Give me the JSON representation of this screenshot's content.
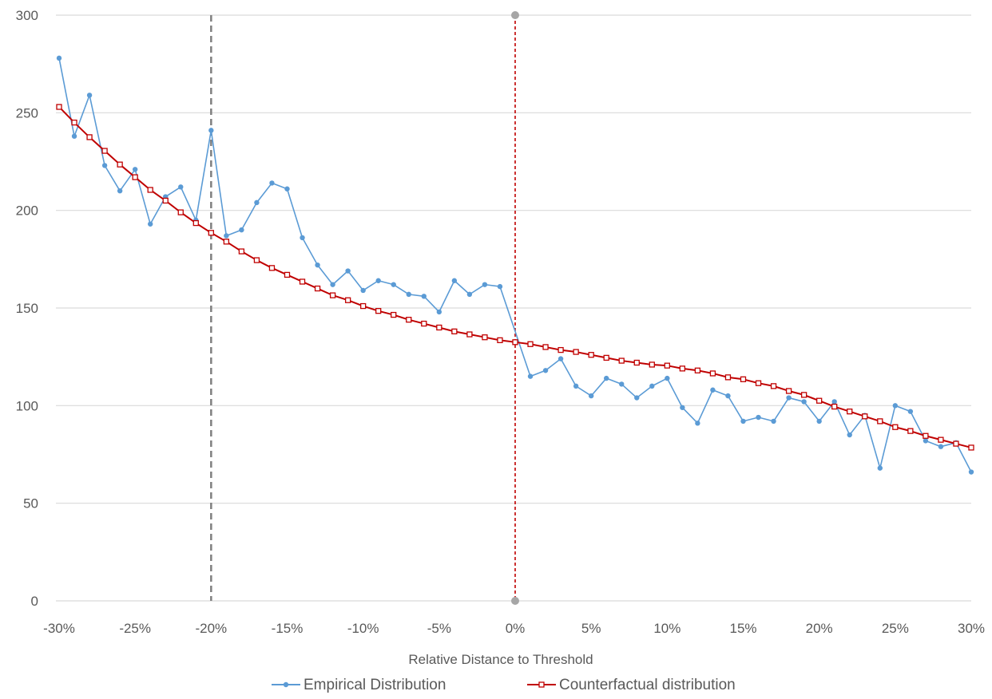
{
  "chart_data": {
    "type": "line",
    "title": "",
    "xlabel": "Relative Distance to Threshold",
    "ylabel": "",
    "xlim": [
      -30,
      30
    ],
    "ylim": [
      0,
      300
    ],
    "x_ticks": [
      -30,
      -25,
      -20,
      -15,
      -10,
      -5,
      0,
      5,
      10,
      15,
      20,
      25,
      30
    ],
    "x_tick_labels": [
      "-30%",
      "-25%",
      "-20%",
      "-15%",
      "-10%",
      "-5%",
      "0%",
      "5%",
      "10%",
      "15%",
      "20%",
      "25%",
      "30%"
    ],
    "y_ticks": [
      0,
      50,
      100,
      150,
      200,
      250,
      300
    ],
    "y_tick_labels": [
      "0",
      "50",
      "100",
      "150",
      "200",
      "250",
      "300"
    ],
    "grid": true,
    "legend_position": "bottom",
    "x": [
      -30,
      -29,
      -28,
      -27,
      -26,
      -25,
      -24,
      -23,
      -22,
      -21,
      -20,
      -19,
      -18,
      -17,
      -16,
      -15,
      -14,
      -13,
      -12,
      -11,
      -10,
      -9,
      -8,
      -7,
      -6,
      -5,
      -4,
      -3,
      -2,
      -1,
      0,
      1,
      2,
      3,
      4,
      5,
      6,
      7,
      8,
      9,
      10,
      11,
      12,
      13,
      14,
      15,
      16,
      17,
      18,
      19,
      20,
      21,
      22,
      23,
      24,
      25,
      26,
      27,
      28,
      29,
      30
    ],
    "series": [
      {
        "name": "Empirical Distribution",
        "color": "#5B9BD5",
        "marker": "circle",
        "x": [
          -30,
          -29,
          -28,
          -27,
          -26,
          -25,
          -24,
          -23,
          -22,
          -21,
          -20,
          -19,
          -18,
          -17,
          -16,
          -15,
          -14,
          -13,
          -12,
          -11,
          -10,
          -9,
          -8,
          -7,
          -6,
          -5,
          -4,
          -3,
          -2,
          -1,
          1,
          2,
          3,
          4,
          5,
          6,
          7,
          8,
          9,
          10,
          11,
          12,
          13,
          14,
          15,
          16,
          17,
          18,
          19,
          20,
          21,
          22,
          23,
          24,
          25,
          26,
          27,
          28,
          29,
          30
        ],
        "values": [
          278,
          238,
          259,
          223,
          210,
          221,
          193,
          207,
          212,
          195,
          241,
          187,
          190,
          204,
          214,
          211,
          186,
          172,
          162,
          169,
          159,
          164,
          162,
          157,
          156,
          148,
          164,
          157,
          162,
          161,
          115,
          118,
          124,
          110,
          105,
          114,
          111,
          104,
          110,
          114,
          99,
          91,
          108,
          105,
          92,
          94,
          92,
          104,
          102,
          92,
          102,
          85,
          95,
          68,
          100,
          97,
          82,
          79,
          81,
          66
        ]
      },
      {
        "name": "Counterfactual distribution",
        "color": "#C00000",
        "marker": "square",
        "x": [
          -30,
          -29,
          -28,
          -27,
          -26,
          -25,
          -24,
          -23,
          -22,
          -21,
          -20,
          -19,
          -18,
          -17,
          -16,
          -15,
          -14,
          -13,
          -12,
          -11,
          -10,
          -9,
          -8,
          -7,
          -6,
          -5,
          -4,
          -3,
          -2,
          -1,
          0,
          1,
          2,
          3,
          4,
          5,
          6,
          7,
          8,
          9,
          10,
          11,
          12,
          13,
          14,
          15,
          16,
          17,
          18,
          19,
          20,
          21,
          22,
          23,
          24,
          25,
          26,
          27,
          28,
          29,
          30
        ],
        "values": [
          253,
          245,
          237.5,
          230.5,
          223.5,
          217,
          210.5,
          205,
          199,
          193.5,
          188.5,
          184,
          179,
          174.5,
          170.5,
          167,
          163.5,
          160,
          156.5,
          154,
          151,
          148.5,
          146.5,
          144,
          142,
          140,
          138,
          136.5,
          135,
          133.5,
          132.5,
          131.5,
          130,
          128.5,
          127.5,
          126,
          124.5,
          123,
          122,
          121,
          120.5,
          119,
          118,
          116.5,
          114.5,
          113.5,
          111.5,
          110,
          107.5,
          105.5,
          102.5,
          99.5,
          97,
          94.5,
          92,
          89,
          87,
          84.5,
          82.5,
          80.5,
          78.5
        ]
      }
    ],
    "reference_lines": [
      {
        "x": -20,
        "color": "#808080",
        "style": "dashed"
      },
      {
        "x": 0,
        "color": "#C00000",
        "style": "dotted",
        "endpoints": [
          0,
          300
        ],
        "endpoint_color": "#A6A6A6"
      }
    ]
  },
  "colors": {
    "gridline": "#D9D9D9",
    "text": "#595959",
    "background": "#FFFFFF"
  }
}
